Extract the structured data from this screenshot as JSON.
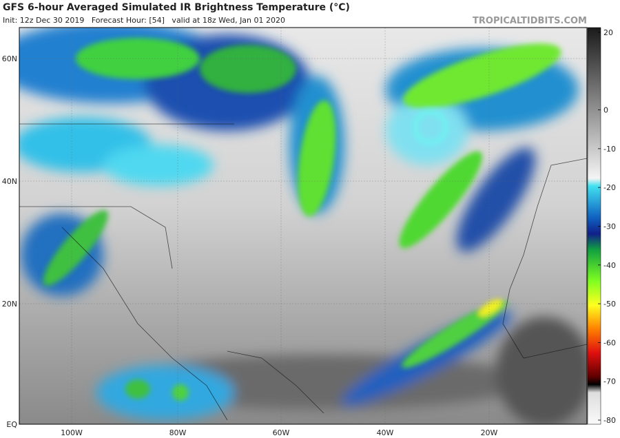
{
  "header": {
    "title": "GFS 6-hour Averaged Simulated IR Brightness Temperature (°C)",
    "subtitle": "Init: 12z Dec 30 2019   Forecast Hour: [54]   valid at 18z Wed, Jan 01 2020",
    "site": "TROPICALTIDBITS.COM"
  },
  "map": {
    "lat_labels": [
      "60N",
      "40N",
      "20N",
      "EQ"
    ],
    "lon_labels": [
      "100W",
      "80W",
      "60W",
      "40W",
      "20W"
    ]
  },
  "colorbar": {
    "ticks": [
      20,
      0,
      -10,
      -20,
      -30,
      -40,
      -50,
      -60,
      -70,
      -80
    ]
  }
}
